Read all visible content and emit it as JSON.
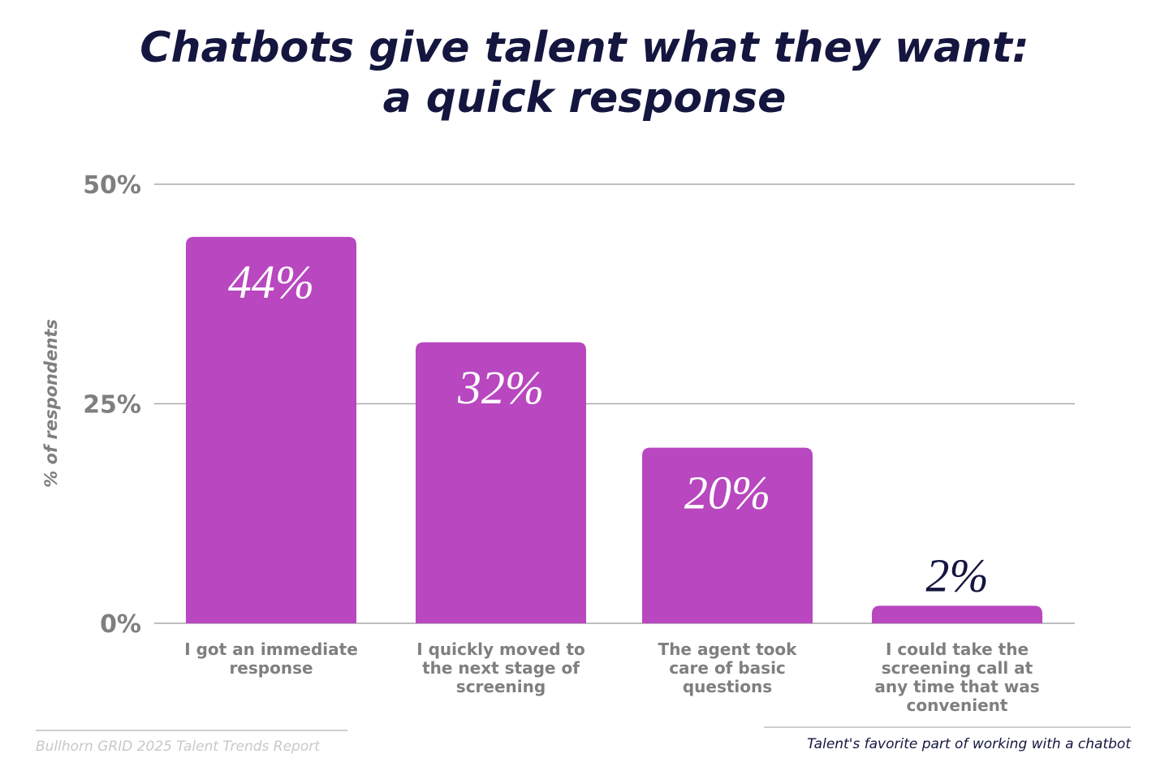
{
  "chart_data": {
    "type": "bar",
    "title": "Chatbots give talent what they want: a quick response",
    "title_lines": [
      "Chatbots give talent what they want:",
      "a quick response"
    ],
    "categories": [
      [
        "I got an immediate",
        "response"
      ],
      [
        "I quickly moved to",
        "the next stage of",
        "screening"
      ],
      [
        "The agent took",
        "care of basic",
        "questions"
      ],
      [
        "I could take the",
        "screening call at",
        "any time that was",
        "convenient"
      ]
    ],
    "values": [
      44,
      32,
      20,
      2
    ],
    "data_labels": [
      "44%",
      "32%",
      "20%",
      "2%"
    ],
    "ylabel": "% of respondents",
    "ylim": [
      0,
      50
    ],
    "yticks": [
      0,
      25,
      50
    ],
    "ytick_labels": [
      "0%",
      "25%",
      "50%"
    ],
    "grid": true,
    "colors": {
      "bar": "#b847c0",
      "title": "#14163f",
      "axis_text": "#7f7f7f",
      "grid": "#a9a9a9",
      "label_inside": "#ffffff",
      "label_outside": "#14163f"
    }
  },
  "footer": {
    "source": "Bullhorn GRID 2025 Talent Trends Report",
    "caption": "Talent's favorite part of working with a chatbot"
  }
}
